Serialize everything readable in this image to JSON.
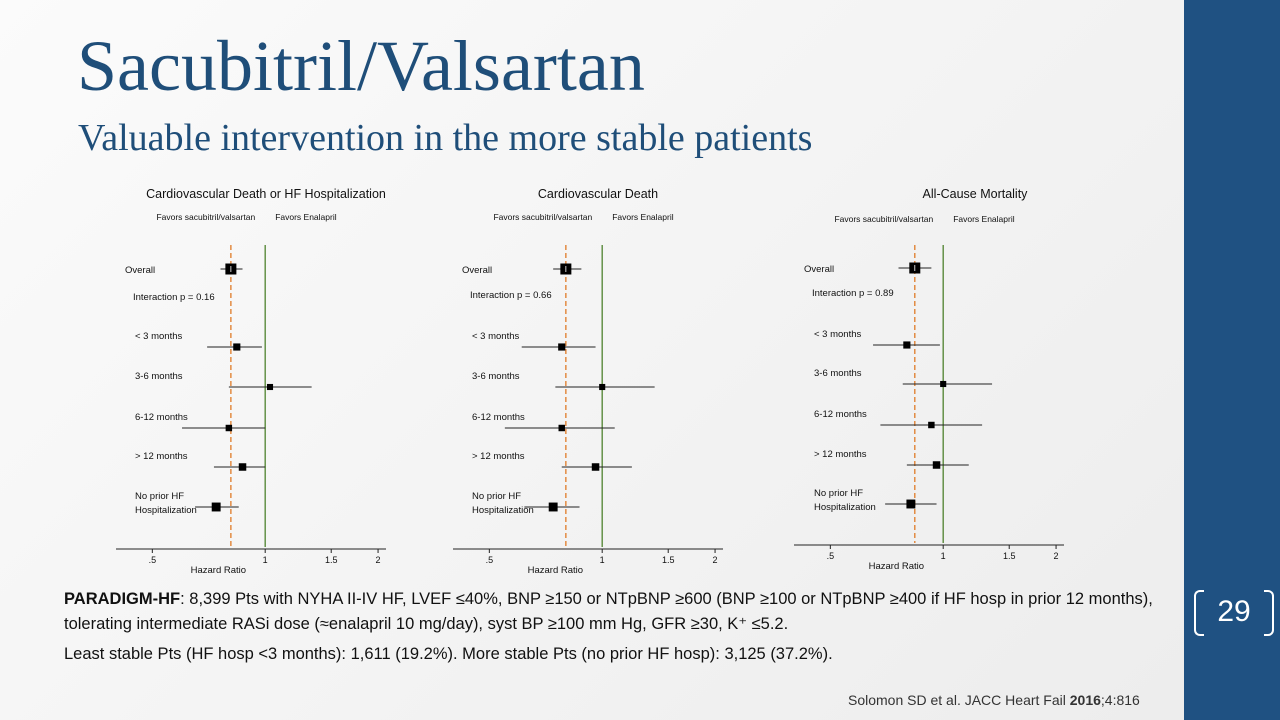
{
  "slide": {
    "title": "Sacubitril/Valsartan",
    "subtitle": "Valuable intervention in the more stable patients",
    "page_number": "29",
    "body": {
      "lead_bold": "PARADIGM-HF",
      "lead_rest": ": 8,399 Pts with NYHA II-IV HF, LVEF ≤40%, BNP ≥150 or NTpBNP ≥600 (BNP ≥100 or NTpBNP ≥400 if HF hosp in prior 12 months), tolerating intermediate RASi dose (≈enalapril 10 mg/day), syst BP ≥100 mm Hg, GFR ≥30, K⁺ ≤5.2.",
      "second_line": "Least stable Pts (HF hosp <3 months): 1,611 (19.2%). More stable Pts (no prior HF hosp): 3,125 (37.2%)."
    },
    "citation": {
      "text": "Solomon SD et al. JACC Heart Fail ",
      "year": "2016",
      "rest": ";4:816"
    },
    "colors": {
      "accent": "#1f5182",
      "title": "#1f4e79",
      "reference_line": "#5a8a3c",
      "overall_line": "#e07b27"
    }
  },
  "chart_data": [
    {
      "type": "forest",
      "title": "Cardiovascular Death or HF Hospitalization",
      "left_label": "Favors sacubitril/valsartan",
      "right_label": "Favors Enalapril",
      "xlabel": "Hazard Ratio",
      "x_scale": "log",
      "xlim": [
        0.4,
        2.1
      ],
      "ticks": [
        {
          "v": 0.5,
          "label": ".5"
        },
        {
          "v": 1,
          "label": "1"
        },
        {
          "v": 1.5,
          "label": "1.5"
        },
        {
          "v": 2,
          "label": "2"
        }
      ],
      "reference": 1,
      "overall_hr": 0.81,
      "interaction": "Interaction p = 0.16",
      "rows": [
        {
          "label": "Overall",
          "hr": 0.81,
          "lo": 0.76,
          "hi": 0.87,
          "weight": 1.0,
          "overall": true
        },
        {
          "label": "< 3 months",
          "hr": 0.84,
          "lo": 0.7,
          "hi": 0.98,
          "weight": 0.45
        },
        {
          "label": "3-6 months",
          "hr": 1.03,
          "lo": 0.8,
          "hi": 1.33,
          "weight": 0.3
        },
        {
          "label": "6-12 months",
          "hr": 0.8,
          "lo": 0.6,
          "hi": 1.0,
          "weight": 0.35
        },
        {
          "label": "> 12 months",
          "hr": 0.87,
          "lo": 0.73,
          "hi": 1.0,
          "weight": 0.5
        },
        {
          "label": "No prior HF",
          "label2": "Hospitalization",
          "hr": 0.74,
          "lo": 0.65,
          "hi": 0.85,
          "weight": 0.7
        }
      ]
    },
    {
      "type": "forest",
      "title": "Cardiovascular Death",
      "left_label": "Favors sacubitril/valsartan",
      "right_label": "Favors Enalapril",
      "xlabel": "Hazard Ratio",
      "x_scale": "log",
      "xlim": [
        0.4,
        2.1
      ],
      "ticks": [
        {
          "v": 0.5,
          "label": ".5"
        },
        {
          "v": 1,
          "label": "1"
        },
        {
          "v": 1.5,
          "label": "1.5"
        },
        {
          "v": 2,
          "label": "2"
        }
      ],
      "reference": 1,
      "overall_hr": 0.8,
      "interaction": "Interaction p = 0.66",
      "rows": [
        {
          "label": "Overall",
          "hr": 0.8,
          "lo": 0.74,
          "hi": 0.88,
          "weight": 1.0,
          "overall": true
        },
        {
          "label": "< 3 months",
          "hr": 0.78,
          "lo": 0.61,
          "hi": 0.96,
          "weight": 0.45
        },
        {
          "label": "3-6 months",
          "hr": 1.0,
          "lo": 0.75,
          "hi": 1.38,
          "weight": 0.3
        },
        {
          "label": "6-12 months",
          "hr": 0.78,
          "lo": 0.55,
          "hi": 1.08,
          "weight": 0.35
        },
        {
          "label": "> 12 months",
          "hr": 0.96,
          "lo": 0.78,
          "hi": 1.2,
          "weight": 0.5
        },
        {
          "label": "No prior HF",
          "label2": "Hospitalization",
          "hr": 0.74,
          "lo": 0.62,
          "hi": 0.87,
          "weight": 0.7
        }
      ]
    },
    {
      "type": "forest",
      "title": "All-Cause Mortality",
      "left_label": "Favors sacubitril/valsartan",
      "right_label": "Favors Enalapril",
      "xlabel": "Hazard Ratio",
      "x_scale": "log",
      "xlim": [
        0.4,
        2.1
      ],
      "ticks": [
        {
          "v": 0.5,
          "label": ".5"
        },
        {
          "v": 1,
          "label": "1"
        },
        {
          "v": 1.5,
          "label": "1.5"
        },
        {
          "v": 2,
          "label": "2"
        }
      ],
      "reference": 1,
      "overall_hr": 0.84,
      "interaction": "Interaction p = 0.89",
      "rows": [
        {
          "label": "Overall",
          "hr": 0.84,
          "lo": 0.76,
          "hi": 0.93,
          "weight": 1.0,
          "overall": true
        },
        {
          "label": "< 3 months",
          "hr": 0.8,
          "lo": 0.65,
          "hi": 0.98,
          "weight": 0.45
        },
        {
          "label": "3-6 months",
          "hr": 1.0,
          "lo": 0.78,
          "hi": 1.35,
          "weight": 0.3
        },
        {
          "label": "6-12 months",
          "hr": 0.93,
          "lo": 0.68,
          "hi": 1.27,
          "weight": 0.35
        },
        {
          "label": "> 12 months",
          "hr": 0.96,
          "lo": 0.8,
          "hi": 1.17,
          "weight": 0.5
        },
        {
          "label": "No prior HF",
          "label2": "Hospitalization",
          "hr": 0.82,
          "lo": 0.7,
          "hi": 0.96,
          "weight": 0.7
        }
      ]
    }
  ]
}
